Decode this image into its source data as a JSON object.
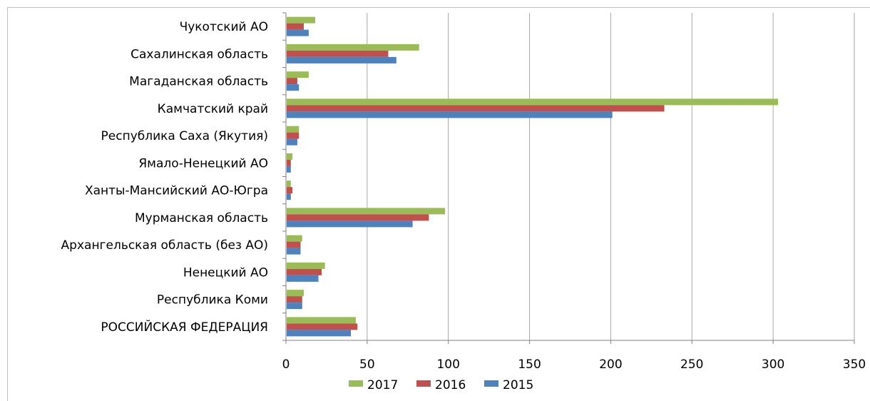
{
  "chart_data": {
    "type": "bar",
    "orientation": "horizontal",
    "title": "",
    "xlabel": "",
    "ylabel": "",
    "xlim": [
      0,
      350
    ],
    "xticks": [
      0,
      50,
      100,
      150,
      200,
      250,
      300,
      350
    ],
    "grid": true,
    "legend_position": "bottom",
    "categories": [
      "Чукотский АО",
      "Сахалинская область",
      "Магаданская область",
      "Камчатский край",
      "Республика Саха (Якутия)",
      "Ямало-Ненецкий АО",
      "Ханты-Мансийский АО-Югра",
      "Мурманская область",
      "Архангельская область (без АО)",
      "Ненецкий АО",
      "Республика Коми",
      "РОССИЙСКАЯ ФЕДЕРАЦИЯ"
    ],
    "series": [
      {
        "name": "2017",
        "color": "#9bbb59",
        "values": [
          18,
          82,
          14,
          303,
          8,
          4,
          3,
          98,
          10,
          24,
          11,
          43
        ]
      },
      {
        "name": "2016",
        "color": "#c0504d",
        "values": [
          11,
          63,
          7,
          233,
          8,
          3,
          4,
          88,
          9,
          22,
          10,
          44
        ]
      },
      {
        "name": "2015",
        "color": "#4f81bd",
        "values": [
          14,
          68,
          8,
          201,
          7,
          3,
          3,
          78,
          9,
          20,
          10,
          40
        ]
      }
    ]
  }
}
